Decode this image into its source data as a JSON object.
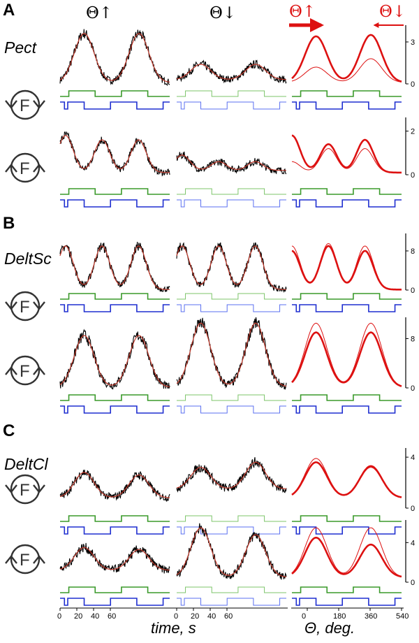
{
  "panels": [
    {
      "label": "A",
      "muscle": "Pect"
    },
    {
      "label": "B",
      "muscle": "DeltSc"
    },
    {
      "label": "C",
      "muscle": "DeltCl"
    }
  ],
  "column_headers": {
    "theta_up": "Θ↑",
    "theta_down": "Θ↓",
    "avg_up": "Θ↑",
    "avg_down": "Θ↓"
  },
  "icon_letter": "F",
  "colors": {
    "raw": "#000000",
    "smooth": "#c0392b",
    "average": "#dd1111",
    "green": "#3a9a2a",
    "blue": "#1f2fd0",
    "light_green": "#7cc46a",
    "light_blue": "#5a6ff0",
    "icon": "#333333"
  },
  "chart_data": [
    {
      "type": "line",
      "row": 1,
      "panel": "A",
      "muscle": "Pect",
      "x_unit": "s",
      "yticks": [
        "3",
        "0"
      ],
      "ylim": [
        0,
        4
      ],
      "peaks_up": [
        3.6,
        3.6
      ],
      "peaks_down": [
        1.4,
        1.4
      ],
      "avg_thick_peaks": [
        3.4,
        3.5
      ],
      "avg_thin_peaks": [
        1.2,
        1.8
      ],
      "baseline_up": 0.1,
      "baseline_down": 0.3
    },
    {
      "type": "line",
      "row": 2,
      "panel": "A",
      "muscle": "Pect",
      "x_unit": "s",
      "yticks": [
        "2",
        "0"
      ],
      "ylim": [
        0,
        2.5
      ],
      "peaks_up": [
        1.8,
        1.6,
        1.6
      ],
      "peaks_down": [
        0.9,
        0.6,
        0.6
      ],
      "avg_thick_peaks": [
        1.8,
        1.4,
        1.6
      ],
      "avg_thin_peaks": [
        0.6,
        1.2,
        1.2
      ],
      "baseline_up": 0.1,
      "baseline_down": 0.2
    },
    {
      "type": "line",
      "row": 3,
      "panel": "B",
      "muscle": "DeltSc",
      "x_unit": "s",
      "yticks": [
        "8",
        "0"
      ],
      "ylim": [
        0,
        11
      ],
      "peaks_up": [
        9,
        9,
        9
      ],
      "peaks_down": [
        9,
        9,
        9
      ],
      "avg_thick_peaks": [
        8,
        9,
        8
      ],
      "avg_thin_peaks": [
        9,
        9.5,
        9
      ],
      "baseline_up": 0.1,
      "baseline_down": 0.1
    },
    {
      "type": "line",
      "row": 4,
      "panel": "B",
      "muscle": "DeltSc",
      "x_unit": "s",
      "yticks": [
        "8",
        "0"
      ],
      "ylim": [
        0,
        11
      ],
      "peaks_up": [
        8.5,
        8.5
      ],
      "peaks_down": [
        10.5,
        10.5
      ],
      "avg_thick_peaks": [
        9,
        9
      ],
      "avg_thin_peaks": [
        10.5,
        10.5
      ],
      "baseline_up": 0.1,
      "baseline_down": 0.2
    },
    {
      "type": "line",
      "row": 5,
      "panel": "C",
      "muscle": "DeltCl",
      "x_unit": "s",
      "yticks": [
        "4",
        "0"
      ],
      "ylim": [
        0,
        4.5
      ],
      "peaks_up": [
        2.8,
        2.6
      ],
      "peaks_down": [
        3.2,
        3.6
      ],
      "avg_thick_peaks": [
        3.6,
        3.3
      ],
      "avg_thin_peaks": [
        3.9,
        3.2
      ],
      "baseline_up": 0.8,
      "baseline_down": 1.5
    },
    {
      "type": "line",
      "row": 6,
      "panel": "C",
      "muscle": "DeltCl",
      "x_unit": "s",
      "yticks": [
        "4",
        "0"
      ],
      "ylim": [
        0,
        6
      ],
      "peaks_up": [
        3.5,
        3.3
      ],
      "peaks_down": [
        5.5,
        4.8
      ],
      "avg_thick_peaks": [
        4.5,
        3.8
      ],
      "avg_thin_peaks": [
        5.5,
        5.5
      ],
      "baseline_up": 1.2,
      "baseline_down": 0.5
    }
  ],
  "x_axes": {
    "time_ticks": [
      "0",
      "20",
      "40",
      "60"
    ],
    "time_label": "time, s",
    "theta_ticks": [
      "0",
      "180",
      "360",
      "540"
    ],
    "theta_label": "Θ, deg."
  }
}
